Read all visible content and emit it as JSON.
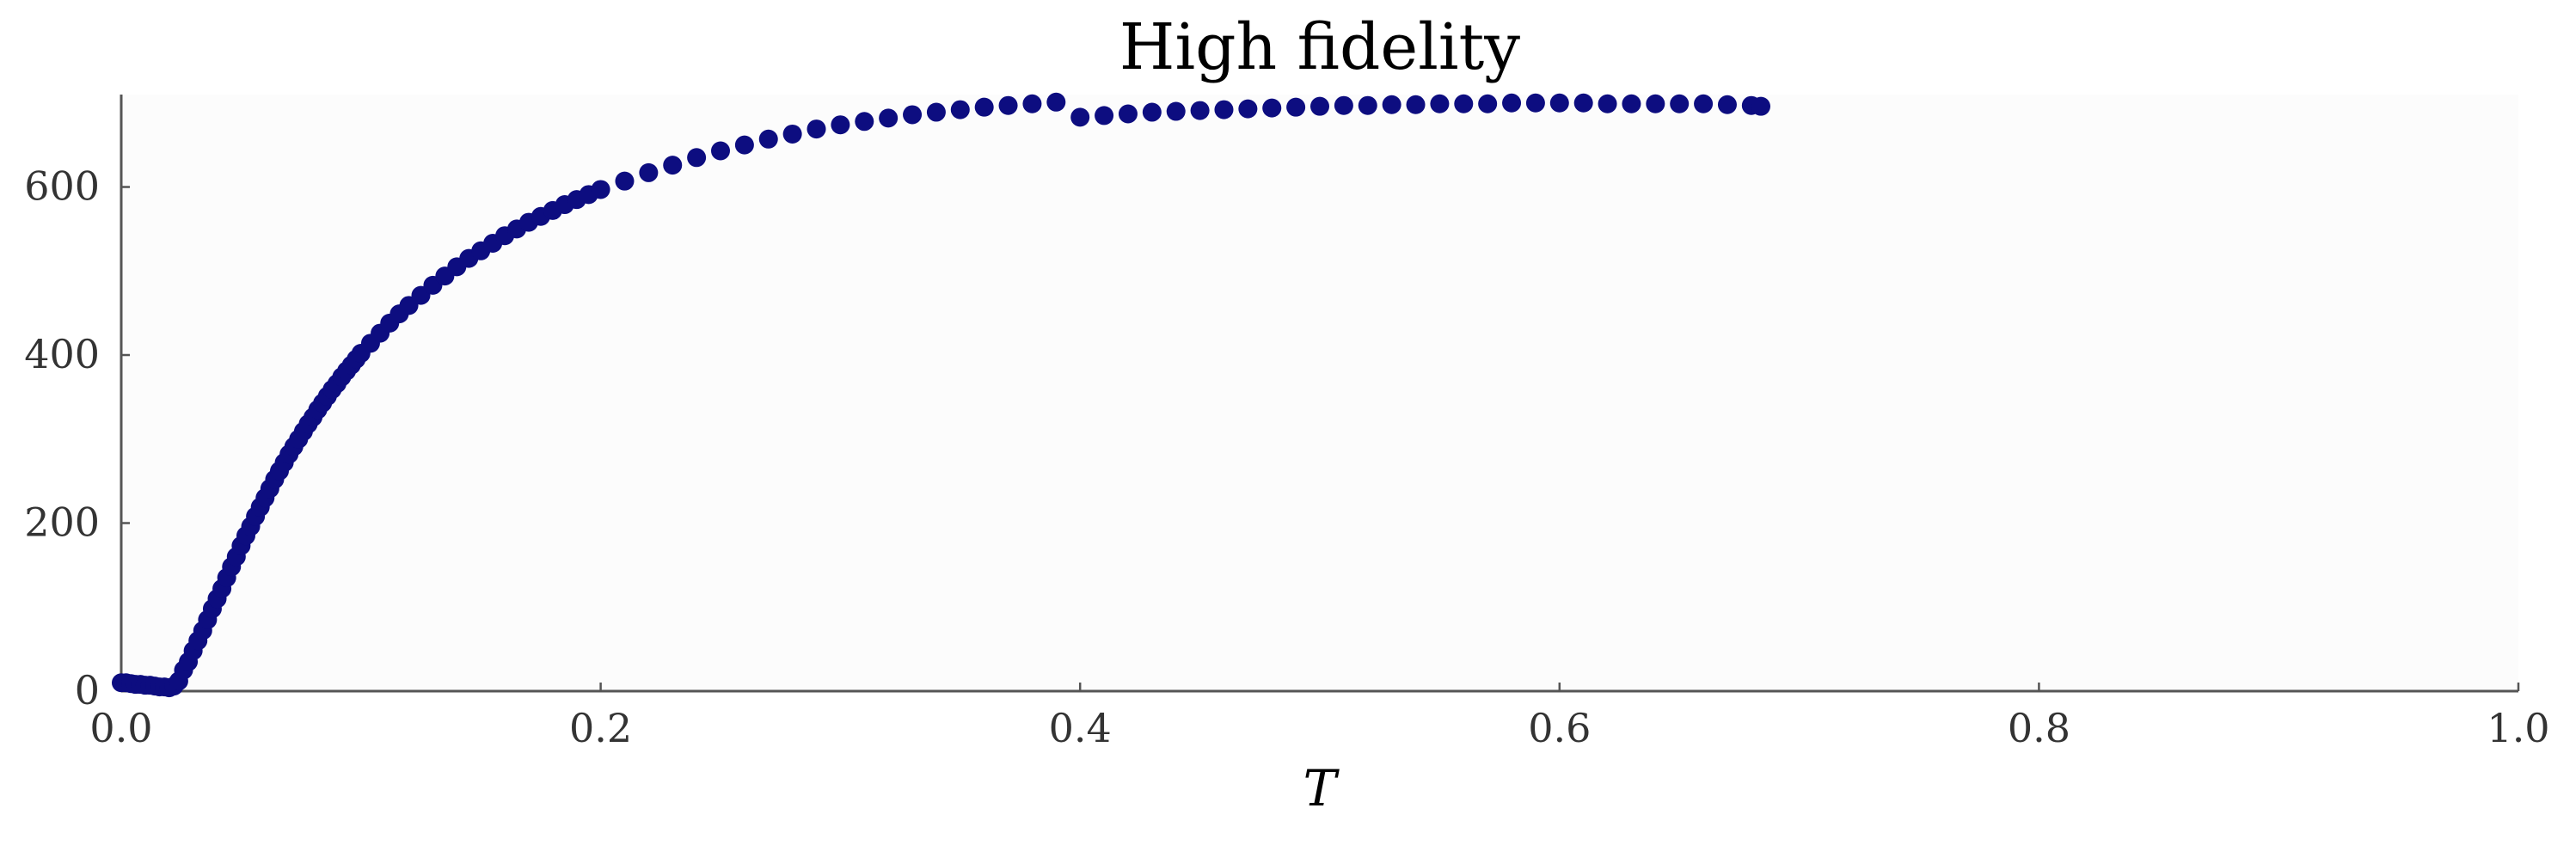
{
  "chart_data": {
    "type": "scatter",
    "title": "High fidelity",
    "xlabel": "T",
    "ylabel": "",
    "xlim": [
      0.0,
      1.0
    ],
    "ylim": [
      0,
      710
    ],
    "xticks": [
      "0.0",
      "0.2",
      "0.4",
      "0.6",
      "0.8",
      "1.0"
    ],
    "yticks": [
      "0",
      "200",
      "400",
      "600"
    ],
    "grid": false,
    "legend": "none",
    "colors": {
      "points": "#0d0d80",
      "axes": "#555555",
      "plot_background": "#fcfcfc"
    },
    "series": [
      {
        "x": [
          0.0,
          0.002,
          0.004,
          0.006,
          0.008,
          0.01,
          0.012,
          0.014,
          0.016,
          0.018,
          0.02,
          0.022,
          0.024,
          0.026,
          0.028,
          0.03,
          0.032,
          0.034,
          0.036,
          0.038,
          0.04,
          0.042,
          0.044,
          0.046,
          0.048,
          0.05,
          0.052,
          0.054,
          0.056,
          0.058,
          0.06,
          0.062,
          0.064,
          0.066,
          0.068,
          0.07,
          0.072,
          0.074,
          0.076,
          0.078,
          0.08,
          0.082,
          0.084,
          0.086,
          0.088,
          0.09,
          0.092,
          0.094,
          0.096,
          0.098,
          0.1,
          0.104,
          0.108,
          0.112,
          0.116,
          0.12,
          0.125,
          0.13,
          0.135,
          0.14,
          0.145,
          0.15,
          0.155,
          0.16,
          0.165,
          0.17,
          0.175,
          0.18,
          0.185,
          0.19,
          0.195,
          0.2,
          0.21,
          0.22,
          0.23,
          0.24,
          0.25,
          0.26,
          0.27,
          0.28,
          0.29,
          0.3,
          0.31,
          0.32,
          0.33,
          0.34,
          0.35,
          0.36,
          0.37,
          0.38,
          0.39,
          0.4,
          0.41,
          0.42,
          0.43,
          0.44,
          0.45,
          0.46,
          0.47,
          0.48,
          0.49,
          0.5,
          0.51,
          0.52,
          0.53,
          0.54,
          0.55,
          0.56,
          0.57,
          0.58,
          0.59,
          0.6,
          0.61,
          0.62,
          0.63,
          0.64,
          0.65,
          0.66,
          0.67,
          0.68,
          0.684
        ],
        "y": [
          10,
          10,
          9,
          8,
          8,
          7,
          7,
          6,
          5,
          5,
          4,
          6,
          12,
          25,
          35,
          48,
          60,
          72,
          85,
          98,
          110,
          122,
          135,
          148,
          160,
          173,
          185,
          196,
          208,
          219,
          230,
          241,
          252,
          262,
          272,
          282,
          291,
          300,
          309,
          318,
          326,
          335,
          343,
          351,
          359,
          366,
          374,
          381,
          388,
          395,
          402,
          414,
          426,
          438,
          449,
          459,
          471,
          483,
          494,
          505,
          515,
          524,
          533,
          542,
          550,
          558,
          565,
          572,
          579,
          585,
          591,
          597,
          607,
          617,
          626,
          635,
          643,
          650,
          657,
          663,
          669,
          674,
          678,
          682,
          686,
          689,
          692,
          695,
          697,
          699,
          701,
          683,
          685,
          687,
          689,
          690,
          691,
          692,
          693,
          694,
          695,
          696,
          697,
          697,
          698,
          698,
          699,
          699,
          699,
          700,
          700,
          700,
          700,
          699,
          699,
          699,
          699,
          699,
          698,
          697,
          696
        ]
      }
    ]
  }
}
